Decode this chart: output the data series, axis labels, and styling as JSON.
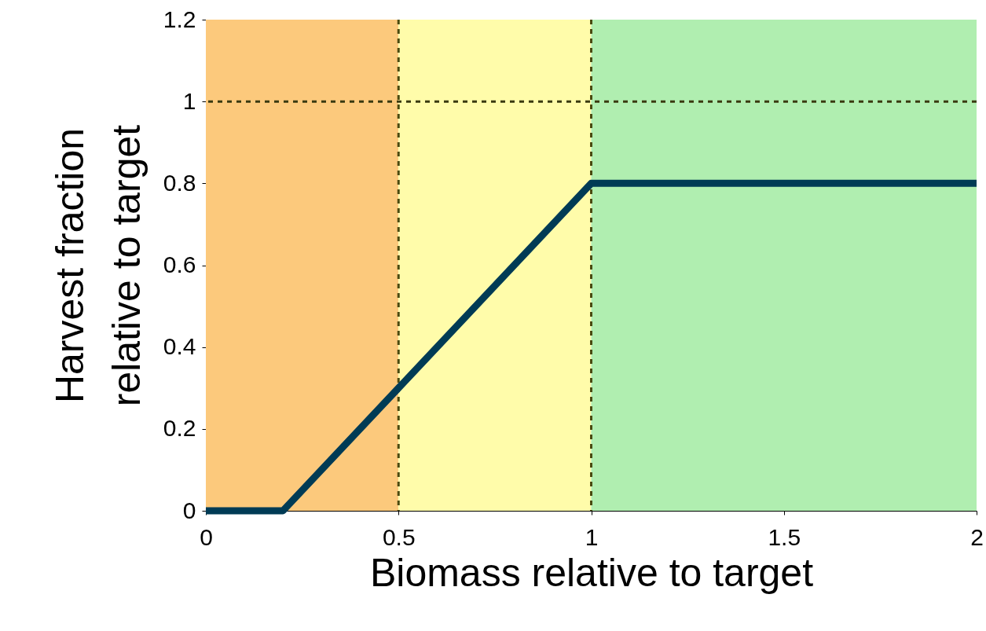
{
  "chart_data": {
    "type": "line",
    "xlabel": "Biomass relative to target",
    "ylabel": "Harvest fraction relative to target",
    "x": [
      0,
      0.2,
      1,
      2
    ],
    "series": [
      {
        "color": "#003b55",
        "values": [
          0,
          0,
          0.8,
          0.8
        ]
      }
    ],
    "xlim": [
      0,
      2
    ],
    "xticks": [
      0,
      0.5,
      1,
      1.5,
      2
    ],
    "ylim": [
      0,
      1.2
    ],
    "yticks": [
      0,
      0.2,
      0.4,
      0.6,
      0.8,
      1,
      1.2
    ],
    "bands": [
      {
        "axis": "x",
        "from": 0,
        "to": 0.5,
        "color": "#fcc97c"
      },
      {
        "axis": "x",
        "from": 0.5,
        "to": 1,
        "color": "#fffcaa"
      },
      {
        "axis": "x",
        "from": 1,
        "to": 2,
        "color": "#b0eeb0"
      }
    ],
    "ref_lines": [
      {
        "axis": "x",
        "value": 0.5,
        "line_style": "dashed",
        "color": "#4a4a10"
      },
      {
        "axis": "x",
        "value": 1,
        "line_style": "dashed",
        "color": "#4a4a10"
      },
      {
        "axis": "y",
        "value": 1,
        "line_style": "dashed",
        "color": "#3a3a10"
      }
    ],
    "marker": "none",
    "line_style": "solid"
  }
}
